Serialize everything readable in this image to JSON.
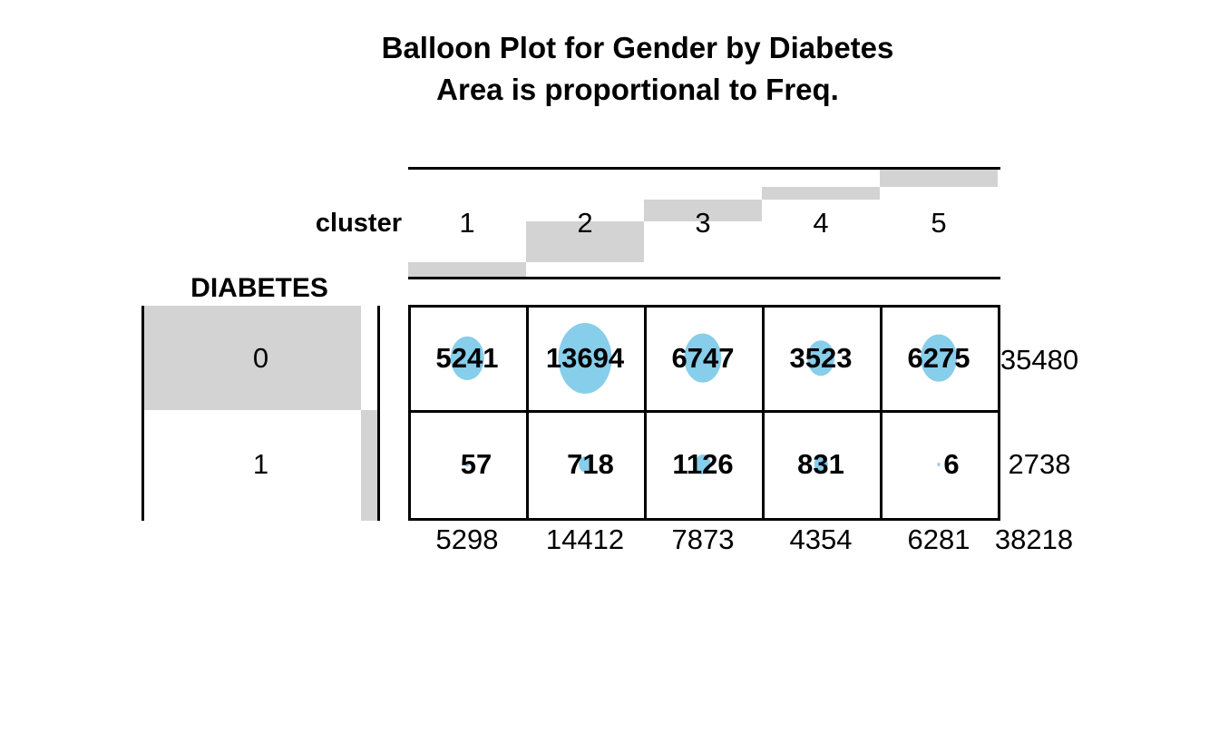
{
  "title": {
    "line1": "Balloon Plot for Gender by Diabetes",
    "line2": "Area is proportional to Freq."
  },
  "column_header": {
    "label": "cluster",
    "categories": [
      "1",
      "2",
      "3",
      "4",
      "5"
    ]
  },
  "row_header": {
    "label": "DIABETES",
    "categories": [
      "0",
      "1"
    ]
  },
  "colors": {
    "balloon": "#87ceeb",
    "margin_bar": "#d3d3d3",
    "line": "#000000",
    "text": "#000000",
    "background": "#ffffff"
  },
  "chart_data": {
    "type": "balloon",
    "title": "Balloon Plot for Gender by Diabetes",
    "subtitle": "Area is proportional to Freq.",
    "x_var": "cluster",
    "y_var": "DIABETES",
    "x_categories": [
      "1",
      "2",
      "3",
      "4",
      "5"
    ],
    "y_categories": [
      "0",
      "1"
    ],
    "values": [
      [
        5241,
        13694,
        6747,
        3523,
        6275
      ],
      [
        57,
        718,
        1126,
        831,
        6
      ]
    ],
    "row_totals": [
      35480,
      2738
    ],
    "col_totals": [
      5298,
      14412,
      7873,
      4354,
      6281
    ],
    "grand_total": 38218,
    "legend": "balloon area proportional to cell frequency; gray bars show marginal totals"
  }
}
